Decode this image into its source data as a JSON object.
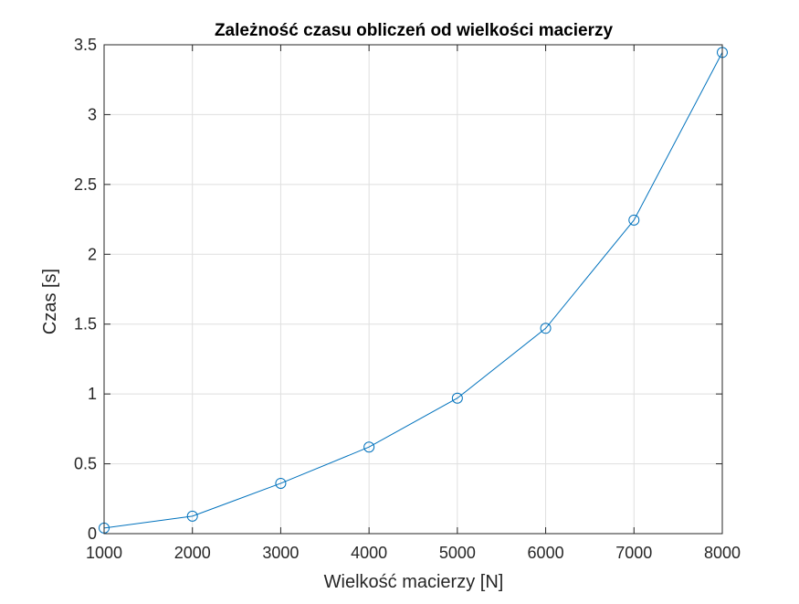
{
  "chart_data": {
    "type": "line",
    "title": "Zależność czasu obliczeń od wielkości macierzy",
    "xlabel": "Wielkość macierzy [N]",
    "ylabel": "Czas [s]",
    "xlim": [
      1000,
      8000
    ],
    "ylim": [
      0,
      3.5
    ],
    "xticks": [
      1000,
      2000,
      3000,
      4000,
      5000,
      6000,
      7000,
      8000
    ],
    "yticks": [
      0,
      0.5,
      1,
      1.5,
      2,
      2.5,
      3,
      3.5
    ],
    "grid": true,
    "series": [
      {
        "marker": "circle",
        "color": "#0072BD",
        "x": [
          1000,
          2000,
          3000,
          4000,
          5000,
          6000,
          7000,
          8000
        ],
        "y": [
          0.04,
          0.125,
          0.36,
          0.62,
          0.97,
          1.47,
          2.245,
          3.445
        ]
      }
    ]
  }
}
